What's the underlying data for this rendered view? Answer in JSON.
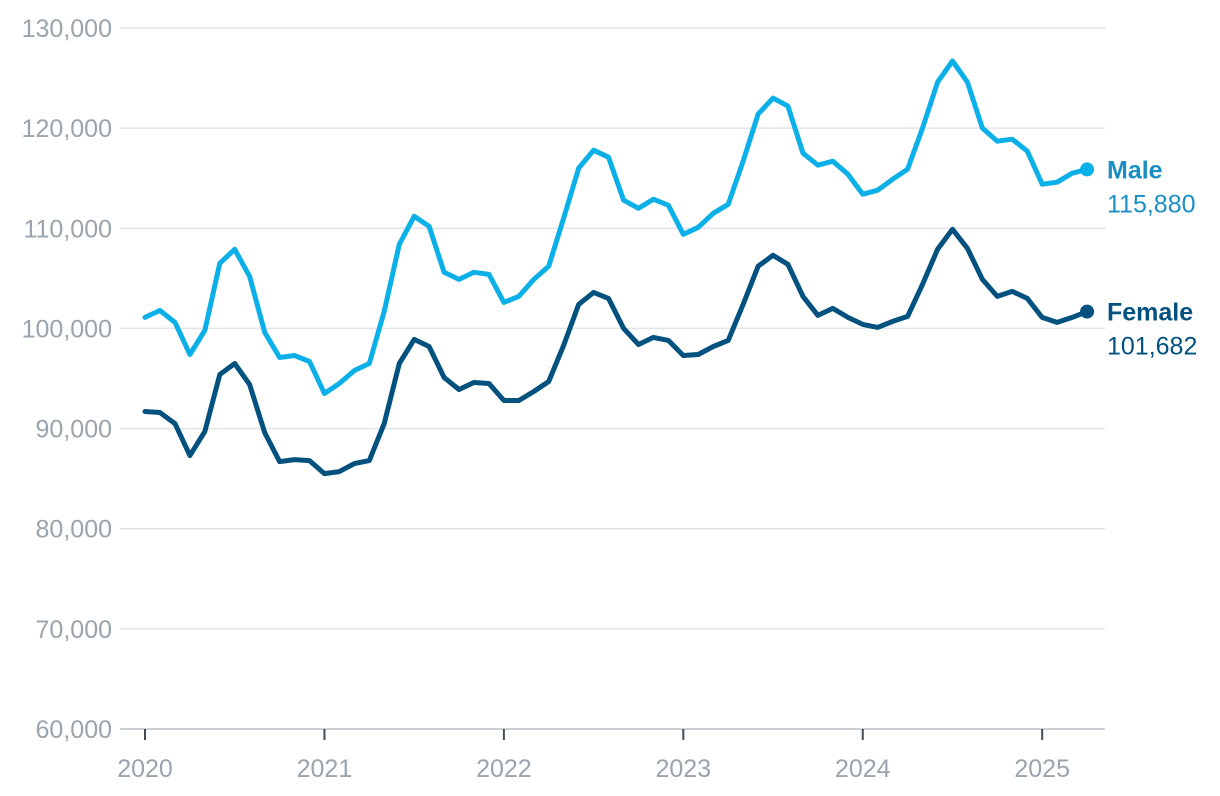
{
  "chart_data": {
    "type": "line",
    "title": "",
    "xlabel": "",
    "ylabel": "",
    "ylim": [
      60000,
      130000
    ],
    "yticks": [
      60000,
      70000,
      80000,
      90000,
      100000,
      110000,
      120000,
      130000
    ],
    "ytick_labels": [
      "60,000",
      "70,000",
      "80,000",
      "90,000",
      "100,000",
      "110,000",
      "120,000",
      "130,000"
    ],
    "xlim": [
      2020.0,
      2025.35
    ],
    "xticks": [
      2020,
      2021,
      2022,
      2023,
      2024,
      2025
    ],
    "xtick_labels": [
      "2020",
      "2021",
      "2022",
      "2023",
      "2024",
      "2025"
    ],
    "grid": true,
    "legend": "direct labels at line ends (right)",
    "series": [
      {
        "name": "Male",
        "color": "#0bb0e8",
        "label_color": "#1a8fc4",
        "end_value_label": "115,880",
        "x": [
          2020.0,
          2020.083,
          2020.167,
          2020.25,
          2020.333,
          2020.417,
          2020.5,
          2020.583,
          2020.667,
          2020.75,
          2020.833,
          2020.917,
          2021.0,
          2021.083,
          2021.167,
          2021.25,
          2021.333,
          2021.417,
          2021.5,
          2021.583,
          2021.667,
          2021.75,
          2021.833,
          2021.917,
          2022.0,
          2022.083,
          2022.167,
          2022.25,
          2022.333,
          2022.417,
          2022.5,
          2022.583,
          2022.667,
          2022.75,
          2022.833,
          2022.917,
          2023.0,
          2023.083,
          2023.167,
          2023.25,
          2023.333,
          2023.417,
          2023.5,
          2023.583,
          2023.667,
          2023.75,
          2023.833,
          2023.917,
          2024.0,
          2024.083,
          2024.167,
          2024.25,
          2024.333,
          2024.417,
          2024.5,
          2024.583,
          2024.667,
          2024.75,
          2024.833,
          2024.917,
          2025.0,
          2025.083,
          2025.167,
          2025.25
        ],
        "values": [
          101100,
          101800,
          100600,
          97400,
          99800,
          106500,
          107900,
          105200,
          99600,
          97100,
          97300,
          96700,
          93500,
          94500,
          95800,
          96500,
          101700,
          108400,
          111200,
          110200,
          105600,
          104900,
          105600,
          105400,
          102600,
          103200,
          104900,
          106200,
          111000,
          116000,
          117800,
          117100,
          112800,
          112000,
          112900,
          112300,
          109400,
          110100,
          111500,
          112400,
          116700,
          121400,
          123000,
          122200,
          117500,
          116300,
          116700,
          115400,
          113400,
          113800,
          114900,
          115900,
          120000,
          124600,
          126700,
          124600,
          120000,
          118700,
          118900,
          117700,
          114400,
          114600,
          115500,
          115880
        ]
      },
      {
        "name": "Female",
        "color": "#02517f",
        "label_color": "#02517f",
        "end_value_label": "101,682",
        "x": [
          2020.0,
          2020.083,
          2020.167,
          2020.25,
          2020.333,
          2020.417,
          2020.5,
          2020.583,
          2020.667,
          2020.75,
          2020.833,
          2020.917,
          2021.0,
          2021.083,
          2021.167,
          2021.25,
          2021.333,
          2021.417,
          2021.5,
          2021.583,
          2021.667,
          2021.75,
          2021.833,
          2021.917,
          2022.0,
          2022.083,
          2022.167,
          2022.25,
          2022.333,
          2022.417,
          2022.5,
          2022.583,
          2022.667,
          2022.75,
          2022.833,
          2022.917,
          2023.0,
          2023.083,
          2023.167,
          2023.25,
          2023.333,
          2023.417,
          2023.5,
          2023.583,
          2023.667,
          2023.75,
          2023.833,
          2023.917,
          2024.0,
          2024.083,
          2024.167,
          2024.25,
          2024.333,
          2024.417,
          2024.5,
          2024.583,
          2024.667,
          2024.75,
          2024.833,
          2024.917,
          2025.0,
          2025.083,
          2025.167,
          2025.25
        ],
        "values": [
          91700,
          91600,
          90500,
          87300,
          89700,
          95400,
          96500,
          94400,
          89600,
          86700,
          86900,
          86800,
          85500,
          85700,
          86500,
          86800,
          90500,
          96500,
          98900,
          98200,
          95100,
          93900,
          94600,
          94500,
          92800,
          92800,
          93700,
          94700,
          98300,
          102400,
          103600,
          103000,
          100000,
          98400,
          99100,
          98800,
          97300,
          97400,
          98200,
          98800,
          102400,
          106200,
          107300,
          106400,
          103200,
          101300,
          102000,
          101100,
          100400,
          100100,
          100700,
          101200,
          104400,
          107900,
          109900,
          108000,
          104900,
          103200,
          103700,
          103000,
          101100,
          100600,
          101100,
          101682
        ]
      }
    ]
  }
}
